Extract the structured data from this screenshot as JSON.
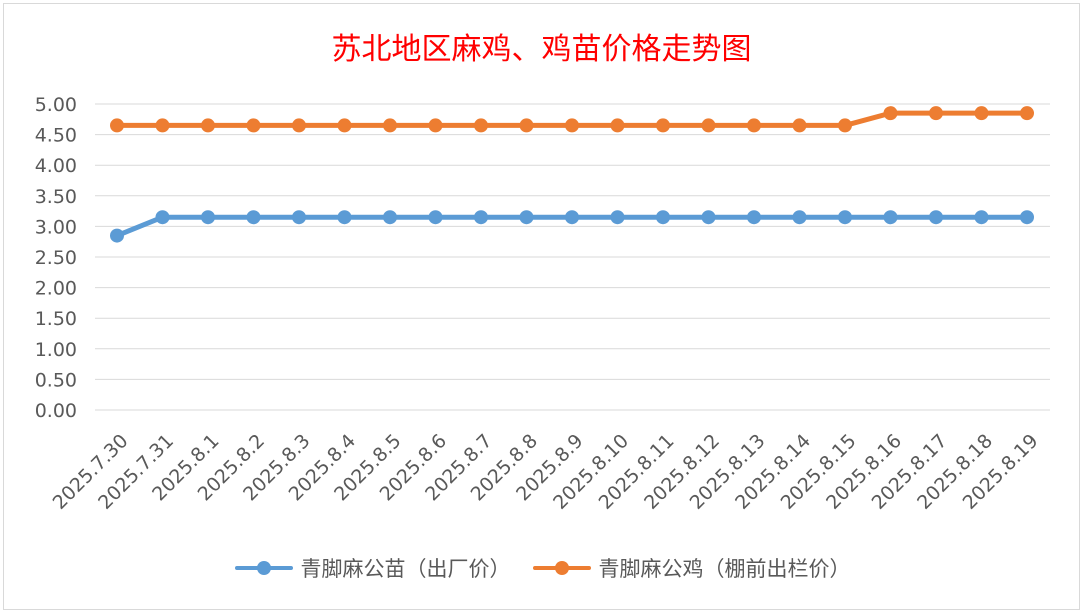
{
  "chart_data": {
    "type": "line",
    "title": "苏北地区麻鸡、鸡苗价格走势图",
    "categories": [
      "2025.7.30",
      "2025.7.31",
      "2025.8.1",
      "2025.8.2",
      "2025.8.3",
      "2025.8.4",
      "2025.8.5",
      "2025.8.6",
      "2025.8.7",
      "2025.8.8",
      "2025.8.9",
      "2025.8.10",
      "2025.8.11",
      "2025.8.12",
      "2025.8.13",
      "2025.8.14",
      "2025.8.15",
      "2025.8.16",
      "2025.8.17",
      "2025.8.18",
      "2025.8.19"
    ],
    "series": [
      {
        "name": "青脚麻公苗（出厂价）",
        "color": "#5b9bd5",
        "values": [
          2.85,
          3.15,
          3.15,
          3.15,
          3.15,
          3.15,
          3.15,
          3.15,
          3.15,
          3.15,
          3.15,
          3.15,
          3.15,
          3.15,
          3.15,
          3.15,
          3.15,
          3.15,
          3.15,
          3.15,
          3.15
        ]
      },
      {
        "name": "青脚麻公鸡（棚前出栏价）",
        "color": "#ed7d31",
        "values": [
          4.65,
          4.65,
          4.65,
          4.65,
          4.65,
          4.65,
          4.65,
          4.65,
          4.65,
          4.65,
          4.65,
          4.65,
          4.65,
          4.65,
          4.65,
          4.65,
          4.65,
          4.85,
          4.85,
          4.85,
          4.85
        ]
      }
    ],
    "ylim": [
      0,
      5
    ],
    "yticks": [
      "0.00",
      "0.50",
      "1.00",
      "1.50",
      "2.00",
      "2.50",
      "3.00",
      "3.50",
      "4.00",
      "4.50",
      "5.00"
    ],
    "grid": true,
    "legend_position": "bottom"
  }
}
